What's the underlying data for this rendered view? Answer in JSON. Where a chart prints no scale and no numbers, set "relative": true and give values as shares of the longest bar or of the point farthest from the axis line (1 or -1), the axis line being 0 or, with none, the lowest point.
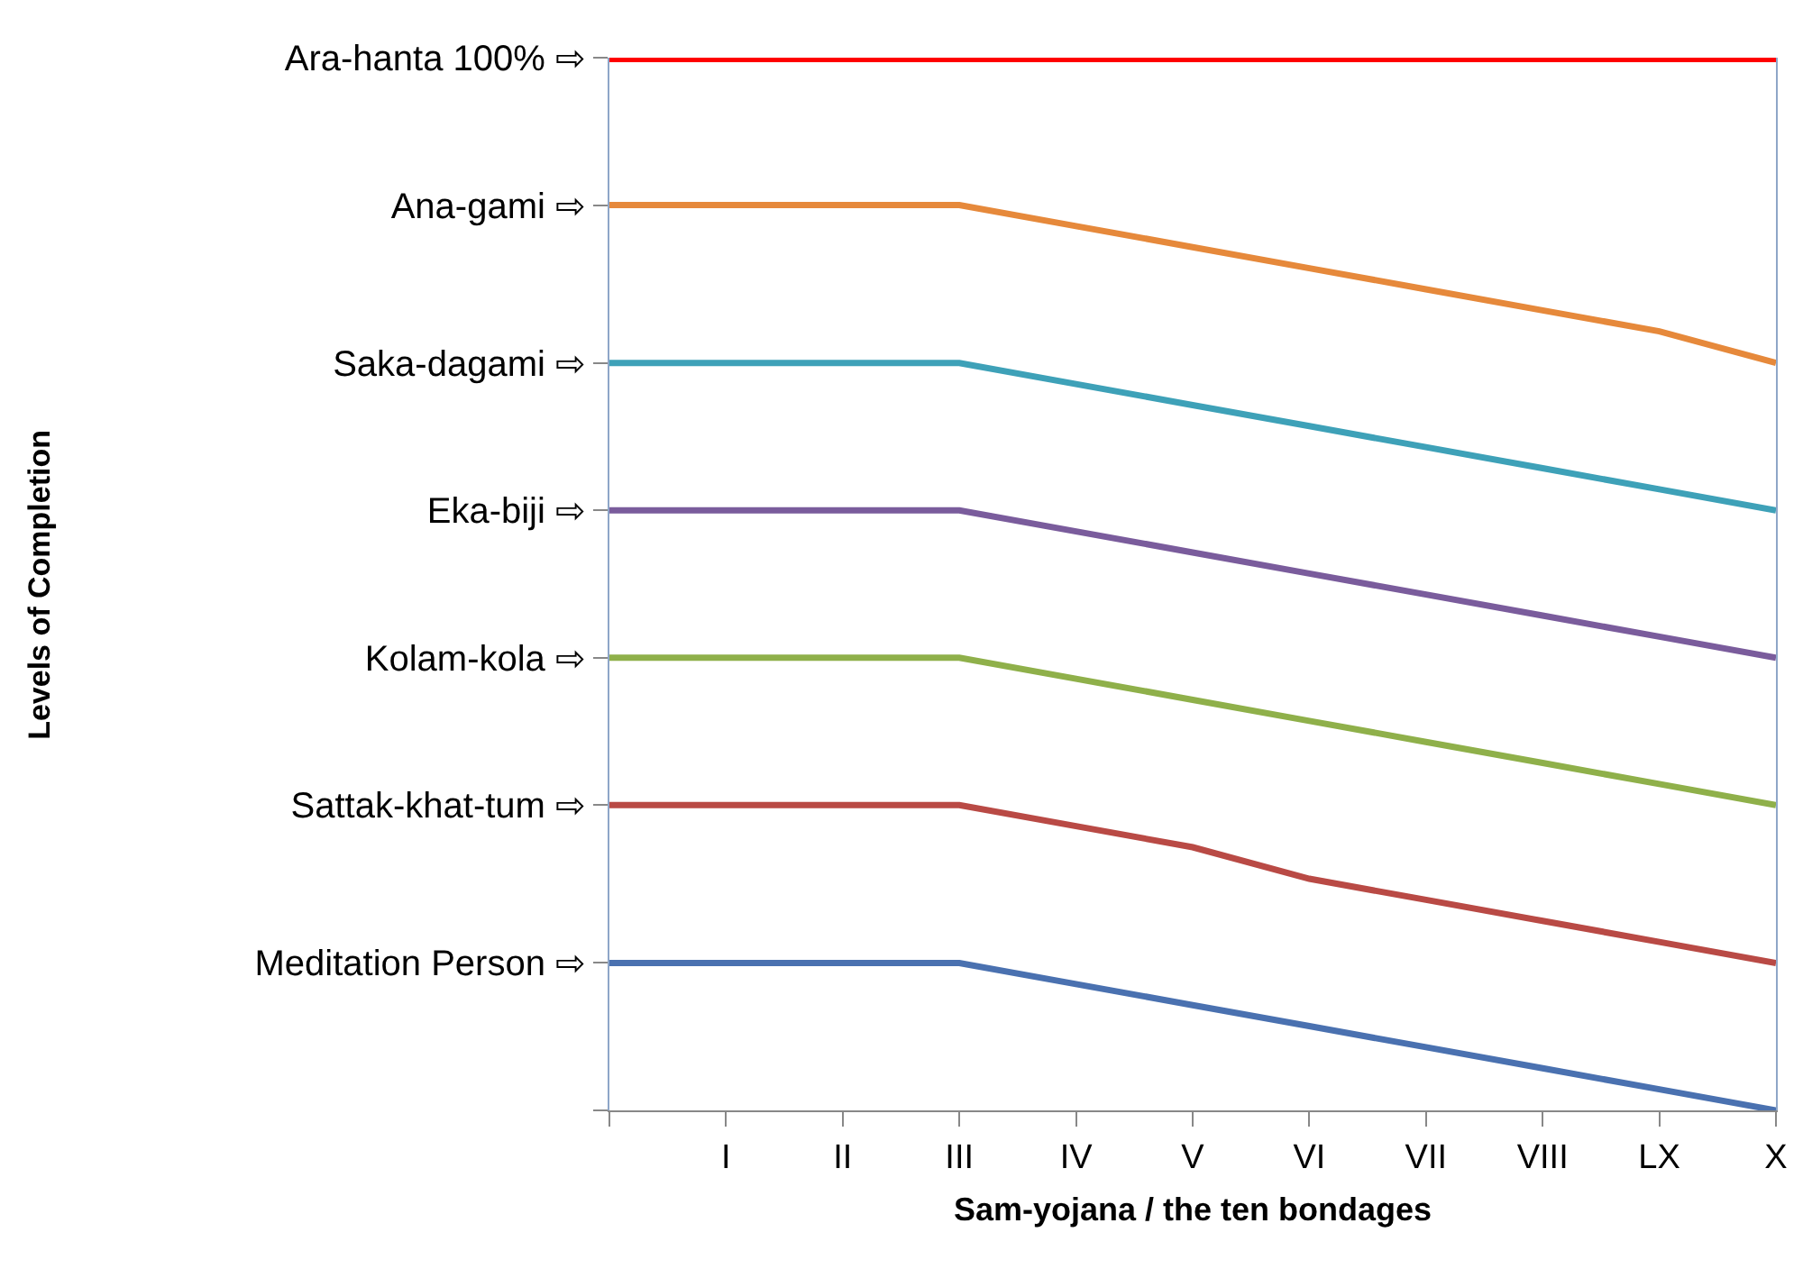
{
  "chart_data": {
    "type": "line",
    "xlabel": "Sam-yojana / the ten bondages",
    "annotations": [
      "Levels of Completion"
    ],
    "categories": [
      null,
      "I",
      "II",
      "III",
      "IV",
      "V",
      "VI",
      "VII",
      "VIII",
      "LX",
      "X"
    ],
    "relative": true,
    "series": [
      {
        "name": "Meditation Person ⇨",
        "color": "#4a71b0",
        "values": [
          0.14,
          0.14,
          0.14,
          0.14,
          0.12,
          0.1,
          0.08,
          0.06,
          0.04,
          0.02,
          0
        ]
      },
      {
        "name": "Sattak-khat-tum ⇨",
        "color": "#b94a45",
        "values": [
          0.29,
          0.29,
          0.29,
          0.29,
          0.27,
          0.25,
          0.22,
          0.2,
          0.18,
          0.16,
          0.14
        ]
      },
      {
        "name": "Kolam-kola ⇨",
        "color": "#8fb04a",
        "values": [
          0.43,
          0.43,
          0.43,
          0.43,
          0.41,
          0.39,
          0.37,
          0.35,
          0.33,
          0.31,
          0.29
        ]
      },
      {
        "name": "Eka-biji ⇨",
        "color": "#7a5c9c",
        "values": [
          0.57,
          0.57,
          0.57,
          0.57,
          0.55,
          0.53,
          0.51,
          0.49,
          0.47,
          0.45,
          0.43
        ]
      },
      {
        "name": "Saka-dagami ⇨",
        "color": "#3ea1b8",
        "values": [
          0.71,
          0.71,
          0.71,
          0.71,
          0.69,
          0.67,
          0.65,
          0.63,
          0.61,
          0.59,
          0.57
        ]
      },
      {
        "name": "Ana-gami ⇨",
        "color": "#e6893b",
        "values": [
          0.86,
          0.86,
          0.86,
          0.86,
          0.84,
          0.82,
          0.8,
          0.78,
          0.76,
          0.74,
          0.71
        ]
      },
      {
        "name": "Ara-hanta 100% ⇨",
        "color": "#ff0000",
        "values": [
          1,
          1,
          1,
          1,
          1,
          1,
          1,
          1,
          1,
          1,
          1
        ]
      }
    ],
    "marker": "none",
    "line_style": "solid"
  }
}
